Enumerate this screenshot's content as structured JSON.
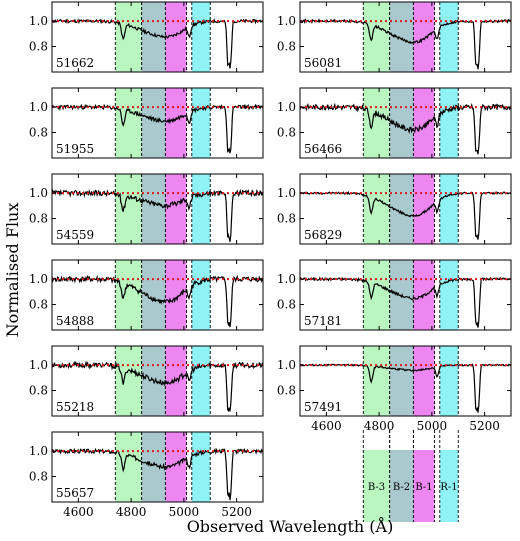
{
  "figure": {
    "ylabel": "Normalised Flux",
    "xlabel": "Observed Wavelength (Å)"
  },
  "band_colors": {
    "B-3": "#b9f6c0",
    "B-2": "#a9c9cf",
    "B-1": "#ee86f2",
    "R-1": "#8ff3f6"
  },
  "legend_bands": [
    "B-3",
    "B-2",
    "B-1",
    "R-1"
  ],
  "chart_data": {
    "type": "line",
    "layout": "small-multiples",
    "xlim": [
      4500,
      5300
    ],
    "ylim": [
      0.6,
      1.15
    ],
    "xticks": [
      4600,
      4800,
      5000,
      5200
    ],
    "yticks": [
      0.8,
      1.0
    ],
    "ytick_labels": [
      "0.8",
      "1.0"
    ],
    "xtick_labels": [
      "4600",
      "4800",
      "5000",
      "5200"
    ],
    "reference_line": {
      "y": 1.0,
      "color": "#e0191a",
      "style": "dotted"
    },
    "bands": [
      {
        "name": "B-3",
        "x0": 4740,
        "x1": 4840
      },
      {
        "name": "B-2",
        "x0": 4840,
        "x1": 4930
      },
      {
        "name": "B-1",
        "x0": 4930,
        "x1": 5010
      },
      {
        "name": "R-1",
        "x0": 5030,
        "x1": 5100
      }
    ],
    "panels": [
      {
        "epoch": "51662",
        "depth": 0.18,
        "noise": 0.012,
        "seed": 11
      },
      {
        "epoch": "51955",
        "depth": 0.16,
        "noise": 0.015,
        "seed": 23
      },
      {
        "epoch": "54559",
        "depth": 0.14,
        "noise": 0.02,
        "seed": 37
      },
      {
        "epoch": "54888",
        "depth": 0.26,
        "noise": 0.02,
        "seed": 41
      },
      {
        "epoch": "55218",
        "depth": 0.2,
        "noise": 0.02,
        "seed": 53
      },
      {
        "epoch": "55657",
        "depth": 0.18,
        "noise": 0.015,
        "seed": 67
      },
      {
        "epoch": "56081",
        "depth": 0.24,
        "noise": 0.01,
        "seed": 71
      },
      {
        "epoch": "56466",
        "depth": 0.26,
        "noise": 0.02,
        "seed": 83
      },
      {
        "epoch": "56829",
        "depth": 0.26,
        "noise": 0.008,
        "seed": 97
      },
      {
        "epoch": "57181",
        "depth": 0.22,
        "noise": 0.01,
        "seed": 101
      },
      {
        "epoch": "57491",
        "depth": 0.06,
        "noise": 0.006,
        "seed": 113
      }
    ]
  }
}
